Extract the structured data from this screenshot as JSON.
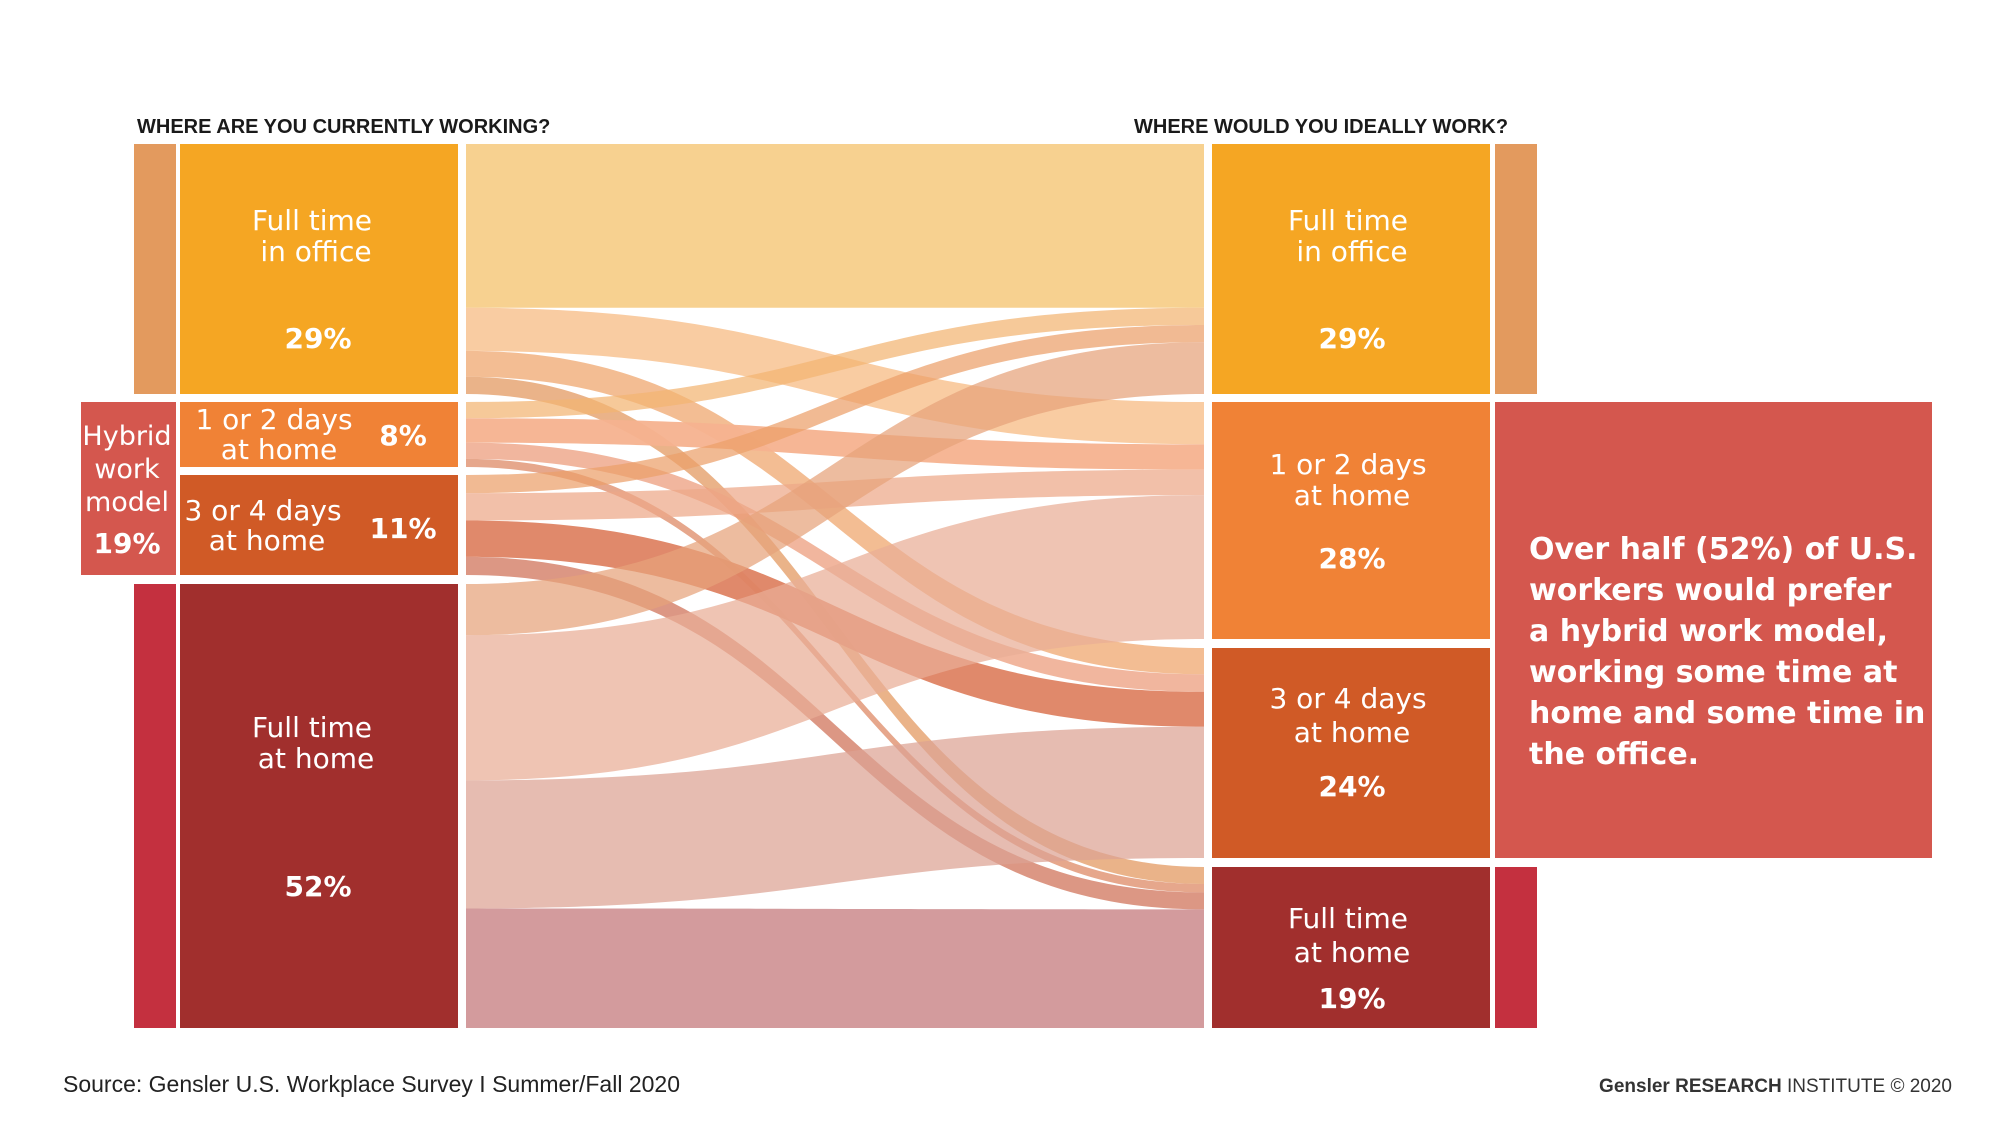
{
  "headers": {
    "left": "WHERE ARE YOU CURRENTLY WORKING?",
    "right": "WHERE WOULD YOU IDEALLY WORK?"
  },
  "chart_data": {
    "type": "sankey",
    "left_nodes": [
      {
        "id": "office",
        "label_lines": [
          "Full time",
          "in office"
        ],
        "value_label": "29%",
        "value": 29,
        "color": "#f5a623"
      },
      {
        "id": "h12",
        "label_lines": [
          "1 or 2 days",
          "at home"
        ],
        "value_label": "8%",
        "value": 8,
        "color": "#f08236"
      },
      {
        "id": "h34",
        "label_lines": [
          "3 or 4 days",
          "at home"
        ],
        "value_label": "11%",
        "value": 11,
        "color": "#d05a26"
      },
      {
        "id": "home",
        "label_lines": [
          "Full time",
          "at home"
        ],
        "value_label": "52%",
        "value": 52,
        "color": "#a12f2d"
      }
    ],
    "right_nodes": [
      {
        "id": "office",
        "label_lines": [
          "Full time",
          "in office"
        ],
        "value_label": "29%",
        "value": 29,
        "color": "#f5a623"
      },
      {
        "id": "h12",
        "label_lines": [
          "1 or 2 days",
          "at home"
        ],
        "value_label": "28%",
        "value": 28,
        "color": "#f08236"
      },
      {
        "id": "h34",
        "label_lines": [
          "3 or 4 days",
          "at home"
        ],
        "value_label": "24%",
        "value": 24,
        "color": "#d05a26"
      },
      {
        "id": "home",
        "label_lines": [
          "Full time",
          "at home"
        ],
        "value_label": "19%",
        "value": 19,
        "color": "#a12f2d"
      }
    ],
    "flows": [
      {
        "from": "office",
        "to": "office",
        "value": 19,
        "color": "#f7cf8a"
      },
      {
        "from": "office",
        "to": "h12",
        "value": 5,
        "color": "#f6b87e"
      },
      {
        "from": "office",
        "to": "h34",
        "value": 3,
        "color": "#eea36a"
      },
      {
        "from": "office",
        "to": "home",
        "value": 2,
        "color": "#e2955b"
      },
      {
        "from": "h12",
        "to": "office",
        "value": 2,
        "color": "#f2b472"
      },
      {
        "from": "h12",
        "to": "h12",
        "value": 3,
        "color": "#f6b28f"
      },
      {
        "from": "h12",
        "to": "h34",
        "value": 2,
        "color": "#ec9a78"
      },
      {
        "from": "h12",
        "to": "home",
        "value": 1,
        "color": "#dc8560"
      },
      {
        "from": "h34",
        "to": "office",
        "value": 2,
        "color": "#eba06a"
      },
      {
        "from": "h34",
        "to": "h12",
        "value": 3,
        "color": "#eda788"
      },
      {
        "from": "h34",
        "to": "h34",
        "value": 4,
        "color": "#de8363"
      },
      {
        "from": "h34",
        "to": "home",
        "value": 2,
        "color": "#cf6f55"
      },
      {
        "from": "home",
        "to": "office",
        "value": 6,
        "color": "#e6a27a"
      },
      {
        "from": "home",
        "to": "h12",
        "value": 17,
        "color": "#e9ad96"
      },
      {
        "from": "home",
        "to": "h34",
        "value": 15,
        "color": "#dca293"
      },
      {
        "from": "home",
        "to": "home",
        "value": 14,
        "color": "#d19698"
      }
    ]
  },
  "hybrid_left": {
    "lines": [
      "Hybrid",
      "work",
      "model"
    ],
    "value_label": "19%"
  },
  "callout": {
    "lines": [
      "Over half (52%) of U.S.",
      "workers would prefer",
      "a hybrid work model,",
      "working some time at",
      "home and some time in",
      "the office."
    ]
  },
  "source": "Source: Gensler U.S. Workplace Survey I Summer/Fall 2020",
  "credit": {
    "brand": "Gensler",
    "bold": "RESEARCH",
    "rest": "INSTITUTE © 2020"
  },
  "colors": {
    "bar_office": "#e39a5e",
    "bar_home": "#c4303f",
    "hybrid": "#d4574e"
  }
}
